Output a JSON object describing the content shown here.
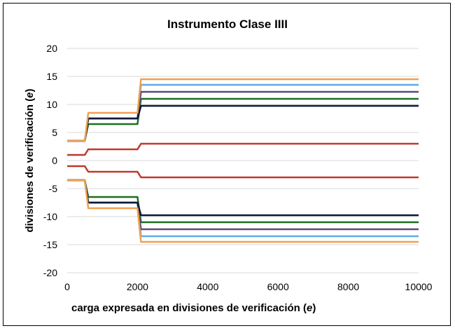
{
  "chart_data": {
    "type": "line",
    "title": "Instrumento Clase IIII",
    "xlabel_prefix": "carga expresada en divisiones de verificación (",
    "xlabel_var": "e",
    "xlabel_suffix": ")",
    "ylabel_prefix": "divisiones de verificación (",
    "ylabel_var": "e",
    "ylabel_suffix": ")",
    "xlim": [
      0,
      10000
    ],
    "ylim": [
      -20,
      20
    ],
    "x_ticks": [
      "0",
      "2000",
      "4000",
      "6000",
      "8000",
      "10000"
    ],
    "y_ticks": [
      "20",
      "15",
      "10",
      "5",
      "0",
      "-5",
      "-10",
      "-15",
      "-20"
    ],
    "grid": true,
    "series": [
      {
        "color": "#c0392b",
        "x": [
          0,
          500,
          600,
          2000,
          2100,
          10000
        ],
        "y": [
          1.0,
          1.0,
          2.0,
          2.0,
          3.0,
          3.0
        ]
      },
      {
        "color": "#c0392b",
        "x": [
          0,
          500,
          600,
          2000,
          2100,
          10000
        ],
        "y": [
          -1.0,
          -1.0,
          -2.0,
          -2.0,
          -3.0,
          -3.0
        ]
      },
      {
        "color": "#1f6e1f",
        "x": [
          0,
          500,
          600,
          2000,
          2100,
          10000
        ],
        "y": [
          3.5,
          3.5,
          6.5,
          6.5,
          11.0,
          11.0
        ]
      },
      {
        "color": "#1f6e1f",
        "x": [
          0,
          500,
          600,
          2000,
          2100,
          10000
        ],
        "y": [
          -3.5,
          -3.5,
          -6.5,
          -6.5,
          -11.0,
          -11.0
        ]
      },
      {
        "color": "#5dade2",
        "x": [
          0,
          500,
          600,
          2000,
          2100,
          10000
        ],
        "y": [
          3.5,
          3.5,
          7.5,
          7.5,
          13.5,
          13.5
        ]
      },
      {
        "color": "#5dade2",
        "x": [
          0,
          500,
          600,
          2000,
          2100,
          10000
        ],
        "y": [
          -3.5,
          -3.5,
          -7.5,
          -7.5,
          -13.5,
          -13.5
        ]
      },
      {
        "color": "#5b4a7a",
        "x": [
          0,
          500,
          600,
          2000,
          2100,
          10000
        ],
        "y": [
          3.5,
          3.5,
          7.5,
          7.5,
          12.25,
          12.25
        ]
      },
      {
        "color": "#5b4a7a",
        "x": [
          0,
          500,
          600,
          2000,
          2100,
          10000
        ],
        "y": [
          -3.5,
          -3.5,
          -7.5,
          -7.5,
          -12.25,
          -12.25
        ]
      },
      {
        "color": "#0b1a3a",
        "x": [
          0,
          500,
          600,
          2000,
          2100,
          10000
        ],
        "y": [
          3.5,
          3.5,
          7.5,
          7.5,
          9.75,
          9.75
        ]
      },
      {
        "color": "#0b1a3a",
        "x": [
          0,
          500,
          600,
          2000,
          2100,
          10000
        ],
        "y": [
          -3.5,
          -3.5,
          -7.5,
          -7.5,
          -9.75,
          -9.75
        ]
      },
      {
        "color": "#f0a050",
        "x": [
          0,
          500,
          600,
          2000,
          2100,
          10000
        ],
        "y": [
          3.5,
          3.5,
          8.5,
          8.5,
          14.5,
          14.5
        ]
      },
      {
        "color": "#f0a050",
        "x": [
          0,
          500,
          600,
          2000,
          2100,
          10000
        ],
        "y": [
          -3.5,
          -3.5,
          -8.5,
          -8.5,
          -14.5,
          -14.5
        ]
      }
    ]
  }
}
